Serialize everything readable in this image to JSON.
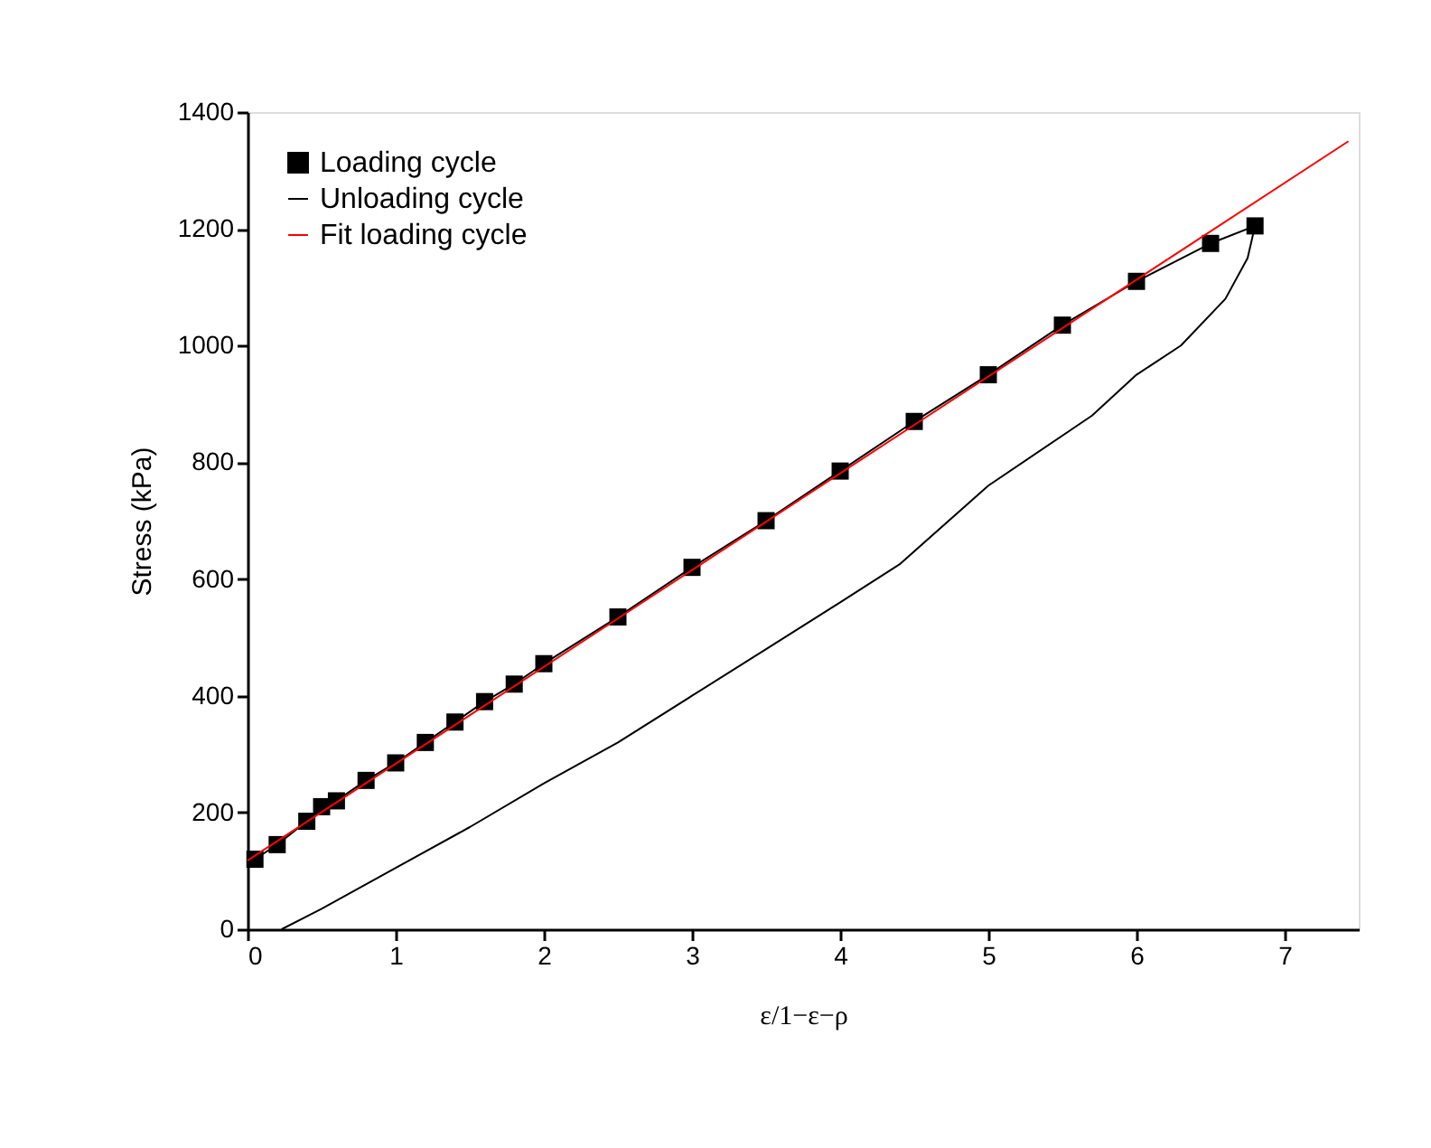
{
  "chart_data": {
    "type": "line",
    "xlabel": "ε/1−ε−ρ",
    "ylabel": "Stress (kPa)",
    "xlim": [
      0,
      7.5
    ],
    "xticks": [
      0,
      1,
      2,
      3,
      4,
      5,
      6,
      7
    ],
    "ylim": [
      0,
      1400
    ],
    "yticks": [
      0,
      200,
      400,
      600,
      800,
      1000,
      1200,
      1400
    ],
    "grid": false,
    "legend": "top left",
    "series": [
      {
        "name": "Loading cycle",
        "color": "#000000",
        "marker": "square",
        "x": [
          0.05,
          0.2,
          0.4,
          0.5,
          0.6,
          0.8,
          1,
          1.2,
          1.4,
          1.6,
          1.8,
          2,
          2.5,
          3,
          3.5,
          4,
          4.5,
          5,
          5.5,
          6,
          6.5,
          6.8
        ],
        "values": [
          120,
          145,
          185,
          210,
          220,
          255,
          285,
          320,
          355,
          390,
          420,
          455,
          535,
          620,
          700,
          785,
          870,
          950,
          1035,
          1110,
          1175,
          1205
        ]
      },
      {
        "name": "Unloading cycle",
        "color": "#000000",
        "marker": "none",
        "x": [
          6.8,
          6.75,
          6.6,
          6.3,
          6,
          5.7,
          5,
          4.4,
          4,
          3.5,
          3,
          2.5,
          2,
          1.5,
          1,
          0.5,
          0.23
        ],
        "values": [
          1205,
          1150,
          1080,
          1000,
          950,
          880,
          760,
          625,
          560,
          480,
          400,
          320,
          250,
          175,
          105,
          35,
          0
        ]
      },
      {
        "name": "Fit loading cycle",
        "color": "#ff0000",
        "marker": "none",
        "x": [
          0,
          7.43
        ],
        "values": [
          118,
          1350
        ]
      }
    ]
  }
}
